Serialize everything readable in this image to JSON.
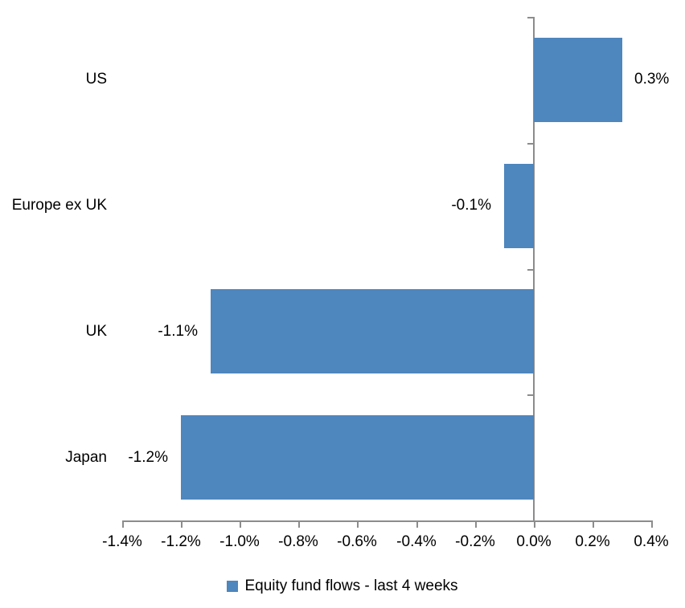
{
  "chart_data": {
    "type": "bar",
    "orientation": "horizontal",
    "title": "",
    "categories": [
      "US",
      "Europe ex UK",
      "UK",
      "Japan"
    ],
    "series": [
      {
        "name": "Equity fund flows - last 4 weeks",
        "values": [
          0.3,
          -0.1,
          -1.1,
          -1.2
        ],
        "labels": [
          "0.3%",
          "-0.1%",
          "-1.1%",
          "-1.2%"
        ]
      }
    ],
    "value_unit": "%",
    "x_axis": {
      "min": -1.4,
      "max": 0.4,
      "step": 0.2,
      "tick_labels": [
        "-1.4%",
        "-1.2%",
        "-1.0%",
        "-0.8%",
        "-0.6%",
        "-0.4%",
        "-0.2%",
        "0.0%",
        "0.2%",
        "0.4%"
      ]
    },
    "y_axis": {
      "zero_line": true
    },
    "grid": false,
    "legend": {
      "label": "Equity fund flows - last 4 weeks",
      "position": "bottom",
      "marker": "square"
    },
    "colors": {
      "bar": "#4E86BE",
      "axis": "#8C8C8C",
      "text": "#000000",
      "background": "#FFFFFF"
    }
  }
}
